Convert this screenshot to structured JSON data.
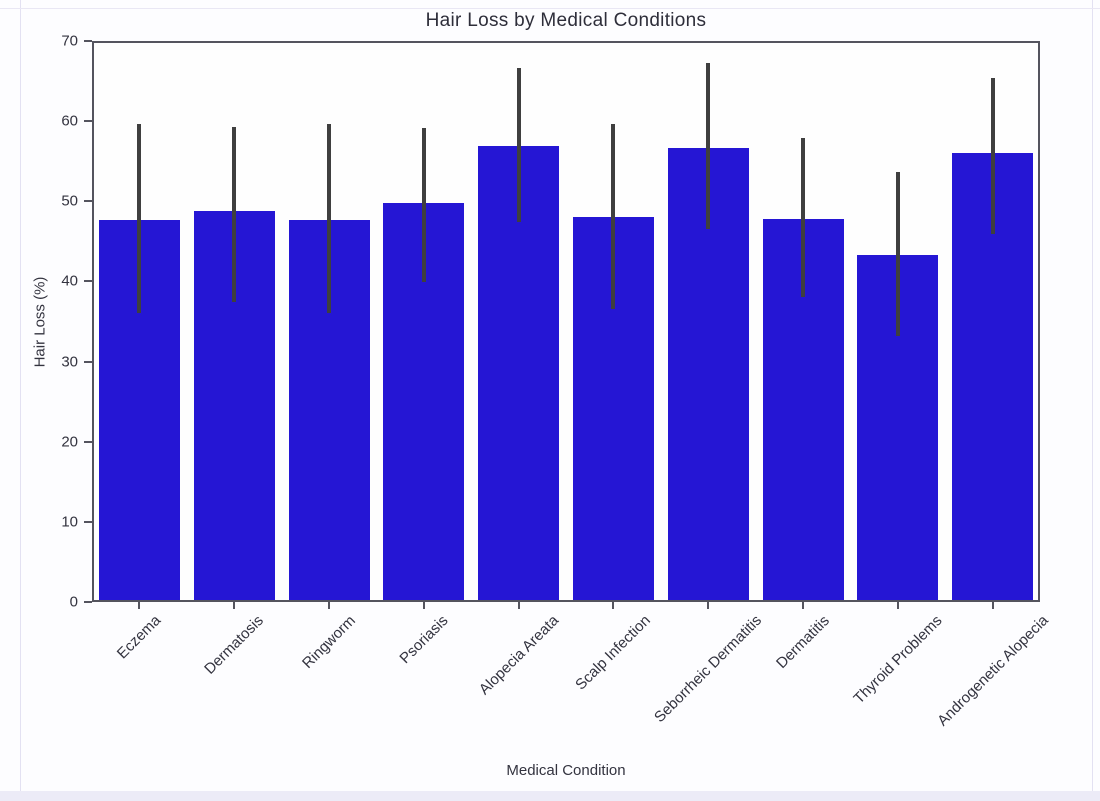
{
  "page": {
    "background_color": "#fdfdff",
    "panel_line_color": "#e3e1f2",
    "bottom_strip_color": "#ecebf7"
  },
  "chart_data": {
    "type": "bar",
    "title": "Hair Loss by Medical Conditions",
    "xlabel": "Medical Condition",
    "ylabel": "Hair Loss (%)",
    "ylim": [
      0,
      70
    ],
    "yticks": [
      0,
      10,
      20,
      30,
      40,
      50,
      60,
      70
    ],
    "grid": false,
    "legend": false,
    "x_tick_rotation": 45,
    "categories": [
      "Eczema",
      "Dermatosis",
      "Ringworm",
      "Psoriasis",
      "Alopecia Areata",
      "Scalp Infection",
      "Seborrheic Dermatitis",
      "Dermatitis",
      "Thyroid Problems",
      "Androgenetic Alopecia"
    ],
    "values": [
      47.7,
      48.8,
      47.7,
      49.8,
      56.9,
      48.0,
      56.6,
      47.8,
      43.3,
      56.0
    ],
    "error_low": [
      36.0,
      37.4,
      36.0,
      39.9,
      47.4,
      36.6,
      46.5,
      38.0,
      33.2,
      45.9
    ],
    "error_high": [
      59.6,
      59.3,
      59.6,
      59.2,
      66.6,
      59.6,
      67.2,
      57.9,
      53.7,
      65.4
    ],
    "bar_color": "#2516d4",
    "error_bar_color": "#3f3f3f",
    "spine_color": "#54545e",
    "text_color": "#33333f"
  }
}
